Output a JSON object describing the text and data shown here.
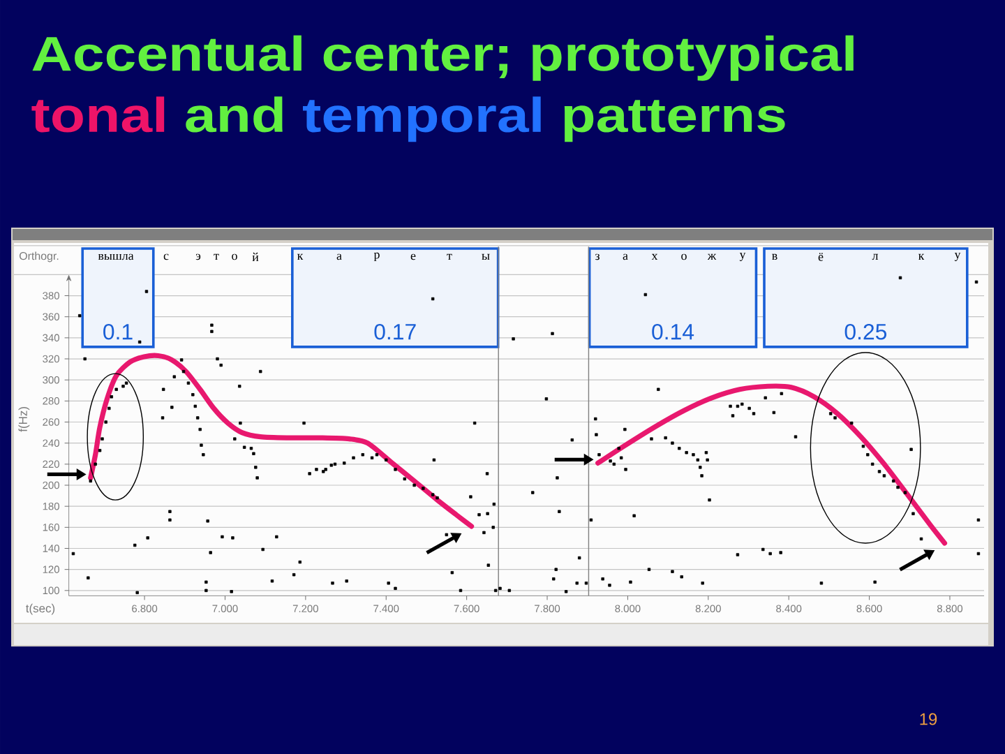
{
  "chart_data": {
    "type": "scatter",
    "title": "Accentual center; prototypical tonal and temporal patterns",
    "xlabel": "t(sec)",
    "ylabel": "f(Hz)",
    "xlim": [
      6.612,
      8.885
    ],
    "ylim": [
      95,
      400
    ],
    "xticks": [
      {
        "value": 6.8,
        "label": "6.800"
      },
      {
        "value": 7.0,
        "label": "7.000"
      },
      {
        "value": 7.2,
        "label": "7.200"
      },
      {
        "value": 7.4,
        "label": "7.400"
      },
      {
        "value": 7.6,
        "label": "7.600"
      },
      {
        "value": 7.8,
        "label": "7.800"
      },
      {
        "value": 8.0,
        "label": "8.000"
      },
      {
        "value": 8.2,
        "label": "8.200"
      },
      {
        "value": 8.4,
        "label": "8.400"
      },
      {
        "value": 8.6,
        "label": "8.600"
      },
      {
        "value": 8.8,
        "label": "8.800"
      }
    ],
    "yticks": [
      100,
      120,
      140,
      160,
      180,
      200,
      220,
      240,
      260,
      280,
      300,
      320,
      340,
      360,
      380
    ],
    "grid": "y",
    "series": [
      {
        "color": "#000000",
        "marker": "square",
        "x": [
          6.623,
          6.639,
          6.652,
          6.66,
          6.666,
          6.678,
          6.689,
          6.695,
          6.704,
          6.712,
          6.718,
          6.73,
          6.747,
          6.755,
          6.776,
          6.782,
          6.788,
          6.805,
          6.808,
          6.845,
          6.847,
          6.863,
          6.863,
          6.868,
          6.874,
          6.892,
          6.897,
          6.909,
          6.92,
          6.926,
          6.932,
          6.938,
          6.941,
          6.946,
          6.953,
          6.953,
          6.957,
          6.964,
          6.967,
          6.967,
          6.981,
          6.99,
          6.993,
          7.016,
          7.019,
          7.024,
          7.036,
          7.038,
          7.048,
          7.065,
          7.071,
          7.076,
          7.08,
          7.088,
          7.094,
          7.117,
          7.128,
          7.171,
          7.186,
          7.196,
          7.21,
          7.227,
          7.244,
          7.25,
          7.264,
          7.267,
          7.273,
          7.296,
          7.302,
          7.319,
          7.342,
          7.365,
          7.377,
          7.4,
          7.406,
          7.423,
          7.423,
          7.446,
          7.47,
          7.492,
          7.516,
          7.516,
          7.519,
          7.527,
          7.55,
          7.564,
          7.585,
          7.61,
          7.62,
          7.631,
          7.643,
          7.651,
          7.652,
          7.654,
          7.666,
          7.668,
          7.672,
          7.683,
          7.706,
          7.716,
          7.764,
          7.798,
          7.813,
          7.816,
          7.822,
          7.825,
          7.83,
          7.847,
          7.862,
          7.874,
          7.88,
          7.897,
          7.909,
          7.92,
          7.922,
          7.929,
          7.938,
          7.955,
          7.957,
          7.966,
          7.978,
          7.984,
          7.993,
          7.995,
          8.007,
          8.016,
          8.044,
          8.053,
          8.059,
          8.076,
          8.094,
          8.111,
          8.111,
          8.128,
          8.134,
          8.146,
          8.163,
          8.174,
          8.18,
          8.184,
          8.186,
          8.195,
          8.198,
          8.203,
          8.255,
          8.261,
          8.273,
          8.273,
          8.284,
          8.302,
          8.313,
          8.336,
          8.342,
          8.354,
          8.363,
          8.38,
          8.382,
          8.417,
          8.481,
          8.504,
          8.515,
          8.556,
          8.585,
          8.596,
          8.608,
          8.614,
          8.625,
          8.637,
          8.66,
          8.671,
          8.677,
          8.689,
          8.704,
          8.709,
          8.729,
          8.866,
          8.871,
          8.871
        ],
        "values": [
          135,
          361,
          320,
          112,
          204,
          220,
          233,
          244,
          260,
          273,
          284,
          291,
          294,
          297,
          143,
          98,
          336,
          384,
          150,
          264,
          291,
          175,
          167,
          274,
          303,
          319,
          308,
          297,
          286,
          275,
          264,
          253,
          238,
          229,
          108,
          100,
          166,
          136,
          352,
          346,
          320,
          314,
          151,
          99,
          150,
          244,
          294,
          259,
          236,
          235,
          230,
          217,
          207,
          308,
          139,
          109,
          151,
          115,
          127,
          259,
          211,
          215,
          213,
          215,
          219,
          107,
          220,
          221,
          109,
          226,
          229,
          226,
          229,
          224,
          107,
          215,
          102,
          206,
          200,
          197,
          191,
          377,
          224,
          188,
          153,
          117,
          100,
          189,
          259,
          172,
          155,
          211,
          173,
          124,
          160,
          182,
          100,
          102,
          100,
          339,
          193,
          282,
          344,
          111,
          120,
          207,
          175,
          99,
          243,
          107,
          131,
          107,
          167,
          263,
          248,
          229,
          111,
          105,
          223,
          220,
          235,
          226,
          253,
          215,
          108,
          171,
          381,
          120,
          244,
          291,
          245,
          240,
          118,
          235,
          113,
          231,
          229,
          224,
          217,
          209,
          107,
          231,
          224,
          186,
          275,
          266,
          275,
          134,
          277,
          273,
          268,
          139,
          283,
          135,
          269,
          136,
          287,
          246,
          107,
          268,
          264,
          259,
          237,
          229,
          220,
          108,
          213,
          209,
          204,
          198,
          397,
          193,
          234,
          173,
          149,
          393,
          167,
          135
        ]
      },
      {
        "type": "line",
        "color": "#E8186E",
        "line_style": "solid",
        "x": [
          6.666,
          6.678,
          6.689,
          6.707,
          6.73,
          6.764,
          6.799,
          6.834,
          6.868,
          6.903,
          6.938,
          6.972,
          7.007,
          7.042,
          7.088,
          7.158,
          7.238,
          7.308,
          7.354,
          7.412,
          7.47,
          7.527,
          7.574,
          7.612
        ],
        "values": [
          207,
          229,
          255,
          282,
          304,
          317,
          322,
          323,
          319,
          308,
          291,
          273,
          259,
          250,
          246,
          245,
          245,
          244,
          240,
          222,
          204,
          186,
          172,
          161
        ]
      },
      {
        "type": "line",
        "color": "#E8186E",
        "line_style": "solid",
        "x": [
          7.926,
          7.99,
          8.07,
          8.14,
          8.209,
          8.278,
          8.348,
          8.406,
          8.463,
          8.521,
          8.579,
          8.637,
          8.695,
          8.752,
          8.787
        ],
        "values": [
          221,
          237,
          256,
          271,
          283,
          291,
          294,
          293,
          284,
          268,
          246,
          220,
          191,
          162,
          145
        ]
      }
    ],
    "bands": [
      {
        "axis": "x",
        "from": 6.646,
        "to": 6.822,
        "label": "0.1",
        "color": "#1A5FD6"
      },
      {
        "axis": "x",
        "from": 7.167,
        "to": 7.678,
        "label": "0.17",
        "color": "#1A5FD6"
      },
      {
        "axis": "x",
        "from": 7.905,
        "to": 8.319,
        "label": "0.14",
        "color": "#1A5FD6"
      },
      {
        "axis": "x",
        "from": 8.339,
        "to": 8.843,
        "label": "0.25",
        "color": "#1A5FD6"
      }
    ],
    "ref_lines": [
      {
        "axis": "x",
        "value": 7.679,
        "color": "#808080"
      },
      {
        "axis": "x",
        "value": 7.903,
        "color": "#808080"
      }
    ],
    "annotations": [
      "Orthogr.",
      "вышла",
      "с",
      "э",
      "т",
      "о",
      "й",
      "к",
      "а",
      "р",
      "е",
      "т",
      "ы",
      "з",
      "а",
      "х",
      "о",
      "ж",
      "у",
      "в",
      "ё",
      "л",
      "к",
      "у",
      "19"
    ]
  }
}
